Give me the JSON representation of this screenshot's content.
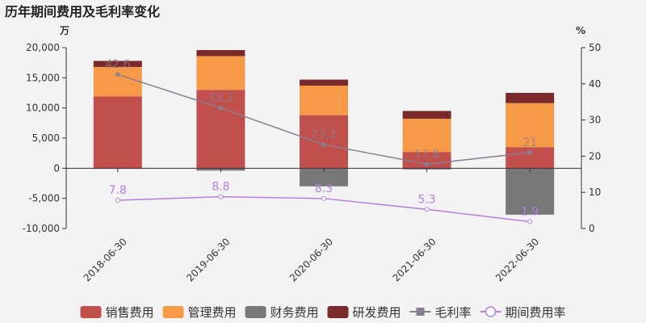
{
  "chart_data": {
    "type": "bar",
    "title": "历年期间费用及毛利率变化",
    "left_unit": "万",
    "right_unit": "%",
    "categories": [
      "2018-06-30",
      "2019-06-30",
      "2020-06-30",
      "2021-06-30",
      "2022-06-30"
    ],
    "ylim_left": [
      -10000,
      20000
    ],
    "yticks_left": [
      -10000,
      -5000,
      0,
      5000,
      10000,
      15000,
      20000
    ],
    "yticks_left_labels": [
      "-10,000",
      "-5,000",
      "0",
      "5,000",
      "10,000",
      "15,000",
      "20,000"
    ],
    "ylim_right": [
      0,
      50
    ],
    "yticks_right": [
      0,
      10,
      20,
      30,
      40,
      50
    ],
    "bar_series": [
      {
        "name": "销售费用",
        "color": "#c1504d",
        "values": [
          11900,
          13000,
          8800,
          2700,
          3500
        ]
      },
      {
        "name": "管理费用",
        "color": "#f79a47",
        "values": [
          4900,
          5600,
          4900,
          5500,
          7300
        ]
      },
      {
        "name": "财务费用",
        "color": "#777777",
        "values": [
          -100,
          -400,
          -3000,
          -200,
          -7700
        ]
      },
      {
        "name": "研发费用",
        "color": "#7a2a2a",
        "values": [
          1000,
          1000,
          1000,
          1300,
          1700
        ]
      }
    ],
    "line_series": [
      {
        "name": "毛利率",
        "color": "#8a7d8f",
        "marker": "square",
        "values": [
          42.6,
          33.3,
          23.2,
          17.8,
          21.0
        ],
        "labels": [
          "42.6",
          "33.3",
          "23.2",
          "17.8",
          "21"
        ]
      },
      {
        "name": "期间费用率",
        "color": "#b57fe0",
        "marker": "circle",
        "values": [
          7.8,
          8.8,
          8.3,
          5.3,
          1.9
        ],
        "labels": [
          "7.8",
          "8.8",
          "8.3",
          "5.3",
          "1.9"
        ]
      }
    ]
  }
}
